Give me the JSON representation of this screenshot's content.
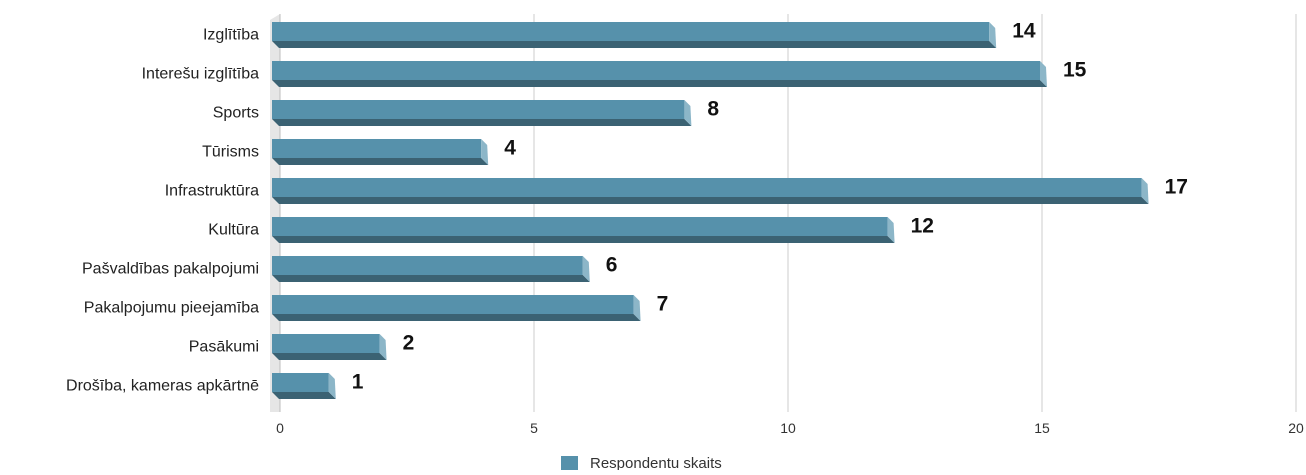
{
  "chart_data": {
    "type": "bar",
    "orientation": "horizontal",
    "categories": [
      "Izglītība",
      "Interešu izglītība",
      "Sports",
      "Tūrisms",
      "Infrastruktūra",
      "Kultūra",
      "Pašvaldības pakalpojumi",
      "Pakalpojumu pieejamība",
      "Pasākumi",
      "Drošība, kameras apkārtnē"
    ],
    "series": [
      {
        "name": "Respondentu skaits",
        "values": [
          14,
          15,
          8,
          4,
          17,
          12,
          6,
          7,
          2,
          1
        ],
        "color": "#5691AB"
      }
    ],
    "xlim": [
      0,
      20
    ],
    "x_ticks": [
      0,
      5,
      10,
      15,
      20
    ],
    "grid": true,
    "legend_position": "bottom",
    "data_labels": true,
    "style": "3d"
  }
}
